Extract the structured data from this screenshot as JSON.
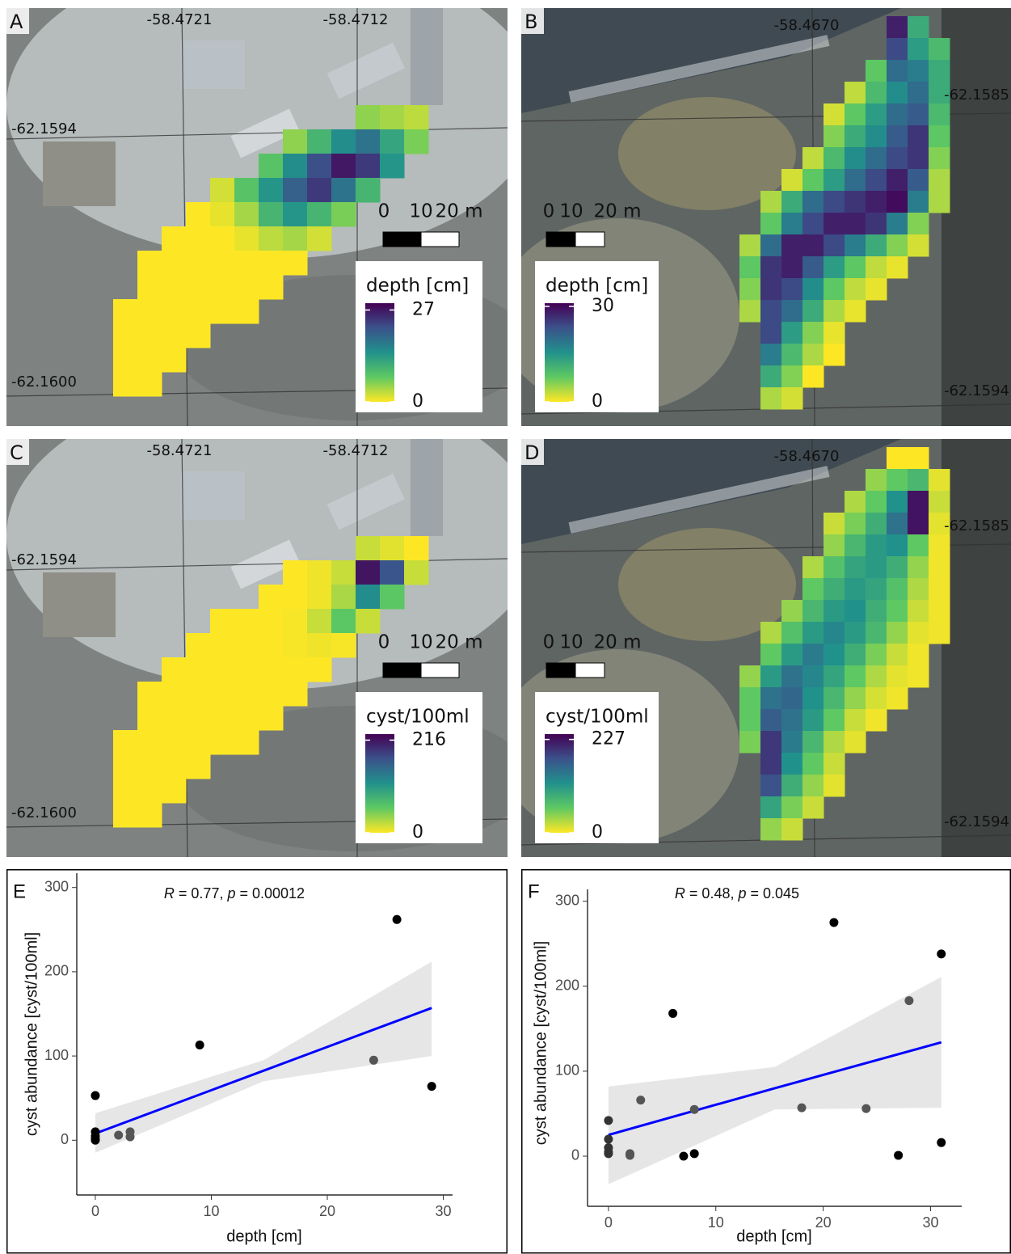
{
  "maps": [
    {
      "panel": "A",
      "lon_labels": [
        "-58.4721",
        "-58.4712"
      ],
      "lat_labels": [
        "-62.1594",
        "-62.1600"
      ],
      "scale_labels": [
        "0",
        "10",
        "20 m"
      ],
      "legend_title": "depth [cm]",
      "colors": [
        "#fde725",
        "#5ec962",
        "#21918c",
        "#3b528b",
        "#440154"
      ],
      "clim": [
        0,
        29
      ],
      "ticks": [
        0,
        27
      ],
      "raster": [
        [
          null,
          null,
          null,
          null,
          null,
          null,
          null,
          null,
          null,
          null,
          5,
          4,
          3
        ],
        [
          null,
          null,
          null,
          null,
          null,
          null,
          null,
          5,
          10,
          15,
          18,
          12,
          6
        ],
        [
          null,
          null,
          null,
          null,
          null,
          null,
          8,
          15,
          22,
          27,
          24,
          14,
          null
        ],
        [
          null,
          null,
          null,
          null,
          2,
          8,
          14,
          20,
          24,
          18,
          10,
          null,
          null
        ],
        [
          null,
          null,
          null,
          0,
          1,
          4,
          10,
          14,
          10,
          6,
          null,
          null,
          null
        ],
        [
          null,
          null,
          0,
          0,
          0,
          1,
          3,
          4,
          2,
          null,
          null,
          null,
          null
        ],
        [
          null,
          0,
          0,
          0,
          0,
          0,
          0,
          0,
          null,
          null,
          null,
          null,
          null
        ],
        [
          null,
          0,
          0,
          0,
          0,
          0,
          0,
          null,
          null,
          null,
          null,
          null,
          null
        ],
        [
          0,
          0,
          0,
          0,
          0,
          0,
          null,
          null,
          null,
          null,
          null,
          null,
          null
        ],
        [
          0,
          0,
          0,
          0,
          null,
          null,
          null,
          null,
          null,
          null,
          null,
          null,
          null
        ],
        [
          0,
          0,
          0,
          null,
          null,
          null,
          null,
          null,
          null,
          null,
          null,
          null,
          null
        ],
        [
          0,
          0,
          null,
          null,
          null,
          null,
          null,
          null,
          null,
          null,
          null,
          null,
          null
        ]
      ]
    },
    {
      "panel": "B",
      "lon_labels": [
        "-58.4670"
      ],
      "lat_labels": [
        "-62.1585",
        "-62.1594"
      ],
      "scale_labels": [
        "0",
        "10",
        "20 m"
      ],
      "legend_title": "depth [cm]",
      "colors": [
        "#fde725",
        "#5ec962",
        "#21918c",
        "#3b528b",
        "#440154"
      ],
      "clim": [
        0,
        31
      ],
      "ticks": [
        0,
        30
      ],
      "raster": [
        [
          null,
          null,
          null,
          null,
          null,
          null,
          null,
          28,
          12,
          null
        ],
        [
          null,
          null,
          null,
          null,
          null,
          null,
          null,
          24,
          14,
          10
        ],
        [
          null,
          null,
          null,
          null,
          null,
          null,
          8,
          20,
          18,
          12
        ],
        [
          null,
          null,
          null,
          null,
          null,
          3,
          10,
          16,
          20,
          12
        ],
        [
          null,
          null,
          null,
          null,
          2,
          8,
          14,
          20,
          22,
          10
        ],
        [
          null,
          null,
          null,
          null,
          6,
          12,
          16,
          22,
          26,
          8
        ],
        [
          null,
          null,
          null,
          3,
          10,
          16,
          20,
          24,
          26,
          6
        ],
        [
          null,
          null,
          2,
          8,
          14,
          20,
          24,
          28,
          22,
          4
        ],
        [
          null,
          4,
          12,
          20,
          24,
          26,
          28,
          30,
          18,
          4
        ],
        [
          null,
          8,
          18,
          24,
          28,
          28,
          26,
          18,
          6,
          null
        ],
        [
          4,
          20,
          28,
          28,
          24,
          18,
          12,
          6,
          2,
          null
        ],
        [
          8,
          26,
          28,
          22,
          14,
          8,
          3,
          1,
          null,
          null
        ],
        [
          6,
          26,
          24,
          16,
          8,
          3,
          1,
          null,
          null,
          null
        ],
        [
          4,
          24,
          20,
          12,
          4,
          1,
          null,
          null,
          null,
          null
        ],
        [
          null,
          24,
          14,
          6,
          1,
          null,
          null,
          null,
          null,
          null
        ],
        [
          null,
          18,
          10,
          4,
          0,
          null,
          null,
          null,
          null,
          null
        ],
        [
          null,
          12,
          6,
          0,
          null,
          null,
          null,
          null,
          null,
          null
        ],
        [
          null,
          4,
          2,
          null,
          null,
          null,
          null,
          null,
          null,
          null
        ]
      ]
    },
    {
      "panel": "C",
      "lon_labels": [
        "-58.4721",
        "-58.4712"
      ],
      "lat_labels": [
        "-62.1594",
        "-62.1600"
      ],
      "scale_labels": [
        "0",
        "10",
        "20 m"
      ],
      "legend_title": "cyst/100ml",
      "colors": [
        "#fde725",
        "#5ec962",
        "#21918c",
        "#3b528b",
        "#440154"
      ],
      "clim": [
        0,
        230
      ],
      "ticks": [
        0,
        216
      ],
      "raster": [
        [
          null,
          null,
          null,
          null,
          null,
          null,
          null,
          null,
          null,
          null,
          20,
          10,
          0
        ],
        [
          null,
          null,
          null,
          null,
          null,
          null,
          null,
          0,
          5,
          20,
          216,
          170,
          20
        ],
        [
          null,
          null,
          null,
          null,
          null,
          null,
          0,
          0,
          5,
          30,
          120,
          60,
          null
        ],
        [
          null,
          null,
          null,
          null,
          0,
          0,
          0,
          2,
          20,
          60,
          20,
          null,
          null
        ],
        [
          null,
          null,
          null,
          0,
          0,
          0,
          0,
          2,
          5,
          2,
          null,
          null,
          null
        ],
        [
          null,
          null,
          0,
          0,
          0,
          0,
          0,
          0,
          0,
          null,
          null,
          null,
          null
        ],
        [
          null,
          0,
          0,
          0,
          0,
          0,
          0,
          0,
          null,
          null,
          null,
          null,
          null
        ],
        [
          null,
          0,
          0,
          0,
          0,
          0,
          0,
          null,
          null,
          null,
          null,
          null,
          null
        ],
        [
          0,
          0,
          0,
          0,
          0,
          0,
          null,
          null,
          null,
          null,
          null,
          null,
          null
        ],
        [
          0,
          0,
          0,
          0,
          null,
          null,
          null,
          null,
          null,
          null,
          null,
          null,
          null
        ],
        [
          0,
          0,
          0,
          null,
          null,
          null,
          null,
          null,
          null,
          null,
          null,
          null,
          null
        ],
        [
          0,
          0,
          null,
          null,
          null,
          null,
          null,
          null,
          null,
          null,
          null,
          null,
          null
        ]
      ]
    },
    {
      "panel": "D",
      "lon_labels": [
        "-58.4670"
      ],
      "lat_labels": [
        "-62.1585",
        "-62.1594"
      ],
      "scale_labels": [
        "0",
        "10",
        "20 m"
      ],
      "legend_title": "cyst/100ml",
      "colors": [
        "#fde725",
        "#5ec962",
        "#21918c",
        "#3b528b",
        "#440154"
      ],
      "clim": [
        0,
        240
      ],
      "ticks": [
        0,
        227
      ],
      "raster": [
        [
          null,
          null,
          null,
          null,
          null,
          null,
          null,
          0,
          0,
          null
        ],
        [
          null,
          null,
          null,
          null,
          null,
          null,
          40,
          60,
          80,
          10
        ],
        [
          null,
          null,
          null,
          null,
          null,
          30,
          60,
          120,
          227,
          20
        ],
        [
          null,
          null,
          null,
          null,
          20,
          50,
          90,
          150,
          227,
          10
        ],
        [
          null,
          null,
          null,
          null,
          40,
          80,
          110,
          120,
          60,
          5
        ],
        [
          null,
          null,
          null,
          30,
          70,
          100,
          110,
          90,
          40,
          5
        ],
        [
          null,
          null,
          null,
          60,
          90,
          110,
          100,
          70,
          30,
          5
        ],
        [
          null,
          null,
          40,
          80,
          110,
          120,
          90,
          60,
          20,
          5
        ],
        [
          null,
          30,
          70,
          110,
          130,
          110,
          80,
          40,
          10,
          5
        ],
        [
          null,
          60,
          110,
          140,
          120,
          90,
          50,
          20,
          5,
          null
        ],
        [
          40,
          110,
          150,
          130,
          100,
          60,
          30,
          10,
          5,
          null
        ],
        [
          60,
          150,
          160,
          120,
          80,
          40,
          15,
          5,
          null,
          null
        ],
        [
          60,
          170,
          150,
          110,
          60,
          20,
          5,
          null,
          null,
          null
        ],
        [
          50,
          200,
          140,
          80,
          30,
          10,
          null,
          null,
          null,
          null
        ],
        [
          null,
          200,
          120,
          60,
          20,
          null,
          null,
          null,
          null,
          null
        ],
        [
          null,
          180,
          90,
          40,
          10,
          null,
          null,
          null,
          null,
          null
        ],
        [
          null,
          100,
          50,
          20,
          null,
          null,
          null,
          null,
          null,
          null
        ],
        [
          null,
          40,
          20,
          null,
          null,
          null,
          null,
          null,
          null,
          null
        ]
      ]
    }
  ],
  "chart_data": [
    {
      "type": "scatter",
      "panel": "E",
      "annotation": [
        "R",
        " = 0.77, ",
        "p",
        " = 0.00012"
      ],
      "x_label": "depth [cm]",
      "y_label": "cyst abundance [cyst/100ml]",
      "xlim": [
        -1.6,
        30.8
      ],
      "ylim": [
        -65,
        317
      ],
      "xticks": [
        0,
        10,
        20,
        30
      ],
      "yticks": [
        0,
        100,
        200,
        300
      ],
      "points": {
        "x": [
          0,
          0,
          0,
          0,
          0,
          2,
          3,
          3,
          9,
          24,
          26,
          29
        ],
        "y": [
          53,
          10,
          5,
          2,
          0,
          6,
          10,
          4,
          113,
          95,
          262,
          64
        ],
        "colors": [
          "#000000",
          "#000000",
          "#000000",
          "#000000",
          "#000000",
          "#555555",
          "#555555",
          "#555555",
          "#000000",
          "#555555",
          "#000000",
          "#000000"
        ]
      },
      "fit": {
        "color": "#0000ff",
        "band_color": "#e6e6e6",
        "x": [
          0,
          14.5,
          29
        ],
        "y": [
          8,
          82.5,
          157
        ],
        "lower": [
          -15,
          70,
          100
        ],
        "upper": [
          32,
          95,
          212
        ]
      }
    },
    {
      "type": "scatter",
      "panel": "F",
      "annotation": [
        "R",
        " = 0.48, ",
        "p",
        " = 0.045"
      ],
      "x_label": "depth [cm]",
      "y_label": "cyst abundance [cyst/100ml]",
      "xlim": [
        -1.95,
        32.9
      ],
      "ylim": [
        -59,
        314
      ],
      "xticks": [
        0,
        10,
        20,
        30
      ],
      "yticks": [
        0,
        100,
        200,
        300
      ],
      "points": {
        "x": [
          0,
          0,
          0,
          0,
          0,
          2,
          2,
          3,
          6,
          7,
          8,
          8,
          18,
          21,
          24,
          27,
          28,
          31,
          31
        ],
        "y": [
          42,
          20,
          10,
          5,
          3,
          3,
          1,
          66,
          168,
          0,
          55,
          3,
          57,
          275,
          56,
          1,
          183,
          238,
          16
        ],
        "colors": [
          "#333333",
          "#333333",
          "#333333",
          "#333333",
          "#333333",
          "#555555",
          "#555555",
          "#555555",
          "#000000",
          "#000000",
          "#555555",
          "#000000",
          "#555555",
          "#000000",
          "#555555",
          "#000000",
          "#555555",
          "#000000",
          "#000000"
        ]
      },
      "fit": {
        "color": "#0000ff",
        "band_color": "#e6e6e6",
        "x": [
          0,
          15.5,
          31
        ],
        "y": [
          25,
          80,
          134
        ],
        "lower": [
          -33,
          55,
          57
        ],
        "upper": [
          82,
          105,
          211
        ]
      }
    }
  ]
}
